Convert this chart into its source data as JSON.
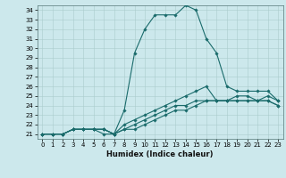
{
  "title": "",
  "xlabel": "Humidex (Indice chaleur)",
  "background_color": "#cce8ec",
  "grid_color": "#aacccc",
  "line_color": "#1a6b6b",
  "xlim": [
    -0.5,
    23.5
  ],
  "ylim": [
    20.5,
    34.5
  ],
  "xticks": [
    0,
    1,
    2,
    3,
    4,
    5,
    6,
    7,
    8,
    9,
    10,
    11,
    12,
    13,
    14,
    15,
    16,
    17,
    18,
    19,
    20,
    21,
    22,
    23
  ],
  "yticks": [
    21,
    22,
    23,
    24,
    25,
    26,
    27,
    28,
    29,
    30,
    31,
    32,
    33,
    34
  ],
  "series": [
    [
      21.0,
      21.0,
      21.0,
      21.5,
      21.5,
      21.5,
      21.0,
      21.0,
      23.5,
      29.5,
      32.0,
      33.5,
      33.5,
      33.5,
      34.5,
      34.0,
      31.0,
      29.5,
      26.0,
      25.5,
      25.5,
      25.5,
      25.5,
      24.5
    ],
    [
      21.0,
      21.0,
      21.0,
      21.5,
      21.5,
      21.5,
      21.5,
      21.0,
      22.0,
      22.5,
      23.0,
      23.5,
      24.0,
      24.5,
      25.0,
      25.5,
      26.0,
      24.5,
      24.5,
      25.0,
      25.0,
      24.5,
      25.0,
      24.5
    ],
    [
      21.0,
      21.0,
      21.0,
      21.5,
      21.5,
      21.5,
      21.5,
      21.0,
      21.5,
      22.0,
      22.5,
      23.0,
      23.5,
      24.0,
      24.0,
      24.5,
      24.5,
      24.5,
      24.5,
      24.5,
      24.5,
      24.5,
      24.5,
      24.0
    ],
    [
      21.0,
      21.0,
      21.0,
      21.5,
      21.5,
      21.5,
      21.5,
      21.0,
      21.5,
      21.5,
      22.0,
      22.5,
      23.0,
      23.5,
      23.5,
      24.0,
      24.5,
      24.5,
      24.5,
      24.5,
      24.5,
      24.5,
      24.5,
      24.0
    ]
  ],
  "tick_fontsize": 5,
  "xlabel_fontsize": 6,
  "marker_size": 1.8
}
